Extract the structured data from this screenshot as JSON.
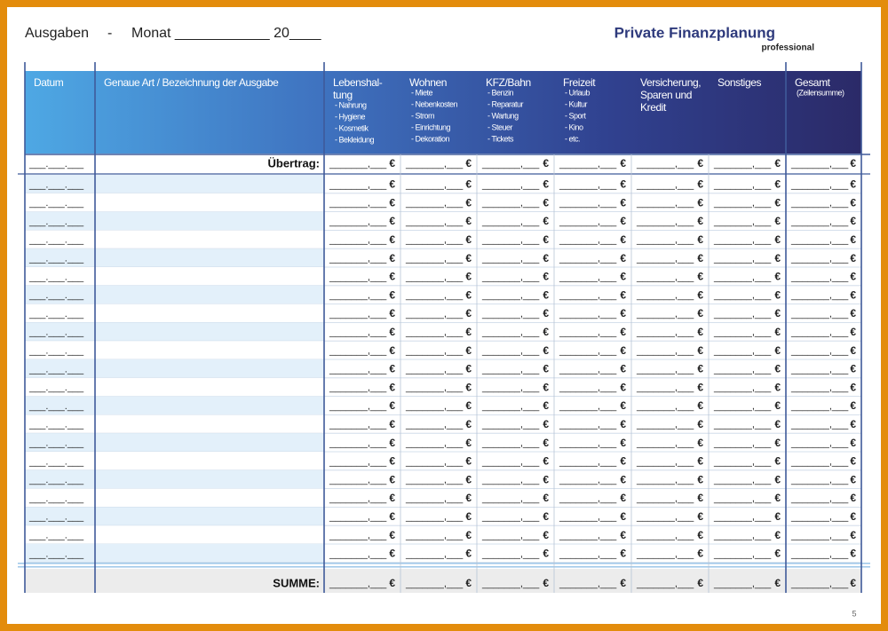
{
  "header": {
    "title": "Ausgaben",
    "dash": "-",
    "month": "Monat ____________ 20____",
    "brand": "Private Finanzplanung",
    "brand_sub": "professional"
  },
  "table": {
    "columns": [
      {
        "label": [
          "Datum"
        ]
      },
      {
        "label": [
          "Genaue Art / Bezeichnung  der Ausgabe"
        ]
      },
      {
        "label": [
          "Lebenshal-",
          "tung"
        ],
        "items": [
          "- Nahrung",
          "- Hygiene",
          "- Kosmetik",
          "- Bekleidung"
        ]
      },
      {
        "label": [
          "Wohnen"
        ],
        "items": [
          "- Miete",
          "- Nebenkosten",
          "- Strom",
          "- Einrichtung",
          "- Dekoration"
        ]
      },
      {
        "label": [
          "KFZ/Bahn"
        ],
        "items": [
          "- Benzin",
          "- Reparatur",
          "- Wartung",
          "- Steuer",
          "- Tickets"
        ]
      },
      {
        "label": [
          "Freizeit"
        ],
        "items": [
          "- Urlaub",
          "- Kultur",
          "- Sport",
          "- Kino",
          "- etc."
        ]
      },
      {
        "label": [
          "Versicherung,",
          "Sparen und",
          "Kredit"
        ]
      },
      {
        "label": [
          "Sonstiges"
        ]
      },
      {
        "label": [
          "Gesamt"
        ],
        "items": [
          "(Zeilensumme)"
        ]
      }
    ],
    "carry_label": "Übertrag:",
    "sum_label": "SUMME:",
    "date_blank": "___.___.___",
    "amount_blank": "_______,___",
    "currency": "€"
  },
  "footer": {
    "page": "5"
  }
}
